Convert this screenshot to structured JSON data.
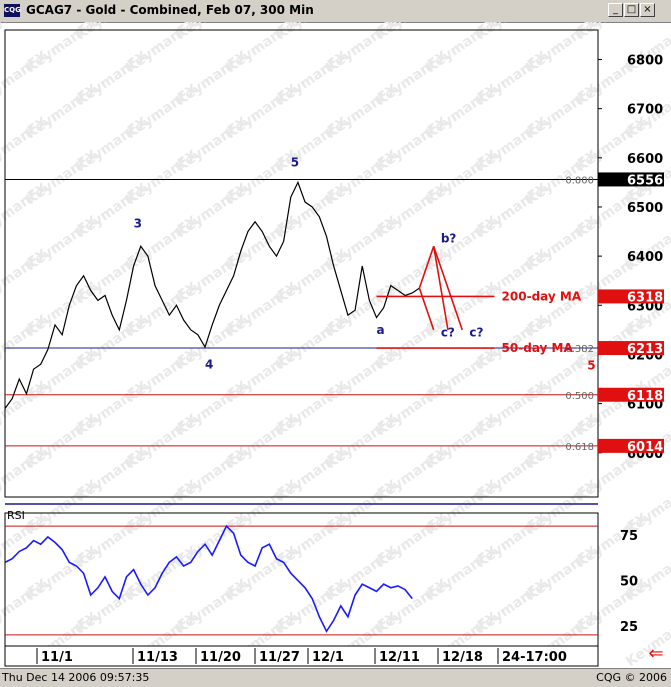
{
  "window": {
    "title": "GCAG7 - Gold - Combined, Feb 07, 300 Min",
    "app_icon": "CQG",
    "buttons": [
      "minimize",
      "maximize",
      "close"
    ]
  },
  "watermark": "KeymanFX",
  "status": {
    "left": "Thu Dec 14 2006 09:57:35",
    "right": "CQG © 2006"
  },
  "chart_data": [
    {
      "type": "line",
      "title": "GCAG7 - Gold - Combined, Feb 07, 300 Min",
      "x_ticks": [
        "11/1",
        "11/13",
        "11/20",
        "11/27",
        "12/1",
        "12/11",
        "12/18",
        "24-17:00"
      ],
      "y_ticks": [
        6000,
        6100,
        6200,
        6300,
        6400,
        6500,
        6600,
        6700,
        6800
      ],
      "ylim": [
        5910,
        6860
      ],
      "series": [
        {
          "values": [
            [
              0,
              6090
            ],
            [
              2,
              6110
            ],
            [
              4,
              6150
            ],
            [
              6,
              6120
            ],
            [
              8,
              6170
            ],
            [
              10,
              6180
            ],
            [
              12,
              6210
            ],
            [
              14,
              6260
            ],
            [
              16,
              6240
            ],
            [
              18,
              6300
            ],
            [
              20,
              6340
            ],
            [
              22,
              6360
            ],
            [
              24,
              6330
            ],
            [
              26,
              6310
            ],
            [
              28,
              6320
            ],
            [
              30,
              6280
            ],
            [
              32,
              6250
            ],
            [
              34,
              6310
            ],
            [
              36,
              6380
            ],
            [
              38,
              6420
            ],
            [
              40,
              6400
            ],
            [
              42,
              6340
            ],
            [
              44,
              6310
            ],
            [
              46,
              6280
            ],
            [
              48,
              6300
            ],
            [
              50,
              6270
            ],
            [
              52,
              6250
            ],
            [
              54,
              6240
            ],
            [
              56,
              6215
            ],
            [
              58,
              6260
            ],
            [
              60,
              6300
            ],
            [
              62,
              6330
            ],
            [
              64,
              6360
            ],
            [
              66,
              6410
            ],
            [
              68,
              6450
            ],
            [
              70,
              6470
            ],
            [
              72,
              6450
            ],
            [
              74,
              6420
            ],
            [
              76,
              6400
            ],
            [
              78,
              6430
            ],
            [
              80,
              6520
            ],
            [
              82,
              6550
            ],
            [
              84,
              6510
            ],
            [
              86,
              6500
            ],
            [
              88,
              6480
            ],
            [
              90,
              6440
            ],
            [
              92,
              6380
            ],
            [
              94,
              6330
            ],
            [
              96,
              6280
            ],
            [
              98,
              6290
            ],
            [
              100,
              6380
            ],
            [
              102,
              6310
            ],
            [
              104,
              6275
            ],
            [
              106,
              6295
            ],
            [
              108,
              6340
            ],
            [
              110,
              6330
            ],
            [
              112,
              6320
            ],
            [
              114,
              6325
            ],
            [
              116,
              6335
            ]
          ]
        }
      ],
      "reference_lines": [
        {
          "label": "0.000",
          "value": 6556,
          "color": "#000000"
        },
        {
          "label": "0.382",
          "value": 6213,
          "color": "#1a1a8c"
        },
        {
          "label": "0.500",
          "value": 6118,
          "color": "#c81414"
        },
        {
          "label": "0.618",
          "value": 6014,
          "color": "#c81414"
        }
      ],
      "price_markers": [
        {
          "value": 6556,
          "label": "6556",
          "bg": "#000000"
        },
        {
          "value": 6318,
          "label": "6318",
          "bg": "#e01010"
        },
        {
          "value": 6213,
          "label": "6213",
          "bg": "#e01010"
        },
        {
          "value": 6118,
          "label": "6118",
          "bg": "#e01010"
        },
        {
          "value": 6014,
          "label": "6014",
          "bg": "#e01010"
        }
      ],
      "annotations": [
        {
          "text": "5",
          "x": 80,
          "y": 6590
        },
        {
          "text": "3",
          "x": 36,
          "y": 6466
        },
        {
          "text": "4",
          "x": 56,
          "y": 6180
        },
        {
          "text": "a",
          "x": 104,
          "y": 6250
        },
        {
          "text": "b?",
          "x": 122,
          "y": 6436
        },
        {
          "text": "c?",
          "x": 122,
          "y": 6245
        },
        {
          "text": "c?",
          "x": 130,
          "y": 6245
        },
        {
          "text": "200-day MA",
          "x": 139,
          "y": 6318
        },
        {
          "text": "50-day MA",
          "x": 139,
          "y": 6213
        },
        {
          "text": "5",
          "x": 163,
          "y": 6178
        }
      ],
      "ma_lines": [
        {
          "name": "200-day MA",
          "value": 6318
        },
        {
          "name": "50-day MA",
          "value": 6213
        }
      ],
      "projection": [
        [
          116,
          6335
        ],
        [
          120,
          6420
        ],
        [
          124,
          6250
        ],
        [
          128,
          6250
        ]
      ],
      "colors": {
        "price": "#000000",
        "annotation": "#1a1a8c",
        "projection": "#e01010"
      }
    },
    {
      "type": "line",
      "title": "RSI",
      "y_ticks": [
        25,
        50,
        75
      ],
      "ylim": [
        15,
        85
      ],
      "guide_lines": [
        80,
        20
      ],
      "series": [
        {
          "values": [
            [
              0,
              60
            ],
            [
              2,
              62
            ],
            [
              4,
              66
            ],
            [
              6,
              68
            ],
            [
              8,
              72
            ],
            [
              10,
              70
            ],
            [
              12,
              74
            ],
            [
              14,
              71
            ],
            [
              16,
              67
            ],
            [
              18,
              60
            ],
            [
              20,
              58
            ],
            [
              22,
              54
            ],
            [
              24,
              42
            ],
            [
              26,
              46
            ],
            [
              28,
              52
            ],
            [
              30,
              44
            ],
            [
              32,
              40
            ],
            [
              34,
              52
            ],
            [
              36,
              56
            ],
            [
              38,
              48
            ],
            [
              40,
              42
            ],
            [
              42,
              46
            ],
            [
              44,
              54
            ],
            [
              46,
              60
            ],
            [
              48,
              63
            ],
            [
              50,
              58
            ],
            [
              52,
              60
            ],
            [
              54,
              66
            ],
            [
              56,
              70
            ],
            [
              58,
              64
            ],
            [
              60,
              72
            ],
            [
              62,
              80
            ],
            [
              64,
              76
            ],
            [
              66,
              64
            ],
            [
              68,
              60
            ],
            [
              70,
              58
            ],
            [
              72,
              68
            ],
            [
              74,
              70
            ],
            [
              76,
              62
            ],
            [
              78,
              60
            ],
            [
              80,
              54
            ],
            [
              82,
              50
            ],
            [
              84,
              46
            ],
            [
              86,
              40
            ],
            [
              88,
              30
            ],
            [
              90,
              22
            ],
            [
              92,
              28
            ],
            [
              94,
              36
            ],
            [
              96,
              30
            ],
            [
              98,
              42
            ],
            [
              100,
              48
            ],
            [
              102,
              46
            ],
            [
              104,
              44
            ],
            [
              106,
              48
            ],
            [
              108,
              46
            ],
            [
              110,
              47
            ],
            [
              112,
              45
            ],
            [
              114,
              40
            ]
          ]
        }
      ],
      "colors": {
        "rsi": "#1a1aff"
      }
    }
  ]
}
